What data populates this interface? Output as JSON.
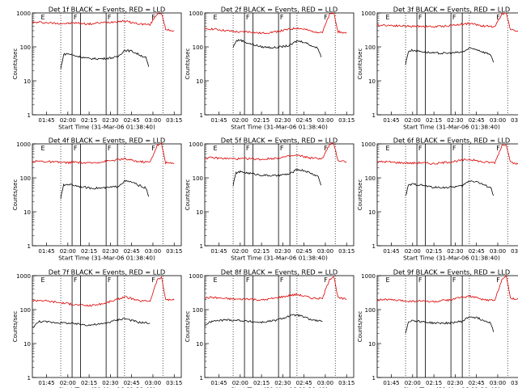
{
  "chart_data": [
    {
      "type": "line",
      "title": "Det 1f BLACK = Events, RED = LLD",
      "xlabel": "Start Time (31-Mar-06 01:38:40)",
      "ylabel": "Counts/sec",
      "yscale": "log",
      "ylim": [
        1,
        1000
      ],
      "xlim_min": [
        95,
        340
      ],
      "xticks_min": [
        105,
        120,
        135,
        150,
        165,
        180,
        195
      ],
      "xtick_labels": [
        "01:45",
        "02:00",
        "02:15",
        "02:30",
        "02:45",
        "03:00",
        "03:15"
      ],
      "yticks": [
        1,
        10,
        100,
        1000
      ],
      "ytick_labels": [
        "1",
        "10",
        "100",
        "1000"
      ],
      "dotted_lines_min": [
        115,
        160,
        187
      ],
      "solid_lines_min": [
        123,
        129,
        147,
        155
      ],
      "markers": [
        {
          "label": "E",
          "min": 101
        },
        {
          "label": "F",
          "min": 124
        },
        {
          "label": "F",
          "min": 148
        },
        {
          "label": "F",
          "min": 179
        }
      ],
      "series": [
        {
          "color": "#dd0000",
          "x": [
            95,
            100,
            110,
            120,
            125,
            135,
            145,
            155,
            160,
            165,
            170,
            178,
            183,
            186,
            189,
            195
          ],
          "y": [
            520,
            530,
            500,
            490,
            510,
            470,
            520,
            560,
            580,
            520,
            480,
            450,
            950,
            1000,
            320,
            300
          ]
        },
        {
          "color": "#000000",
          "x": [
            115,
            117,
            120,
            125,
            135,
            145,
            155,
            160,
            165,
            170,
            175,
            177
          ],
          "y": [
            22,
            60,
            63,
            55,
            45,
            45,
            50,
            80,
            75,
            60,
            48,
            26
          ]
        }
      ]
    },
    {
      "type": "line",
      "title": "Det 2f BLACK = Events, RED = LLD",
      "xlabel": "Start Time (31-Mar-06 01:38:40)",
      "ylabel": "Counts/sec",
      "yscale": "log",
      "ylim": [
        1,
        1000
      ],
      "xtick_labels": [
        "01:45",
        "02:00",
        "02:15",
        "02:30",
        "02:45",
        "03:00",
        "03:15"
      ],
      "yticks": [
        1,
        10,
        100,
        1000
      ],
      "ytick_labels": [
        "1",
        "10",
        "100",
        "1000"
      ],
      "markers": [
        {
          "label": "E",
          "min": 101
        },
        {
          "label": "F",
          "min": 124
        },
        {
          "label": "F",
          "min": 148
        },
        {
          "label": "F",
          "min": 179
        }
      ],
      "series": [
        {
          "color": "#dd0000",
          "x": [
            95,
            100,
            110,
            120,
            125,
            135,
            145,
            155,
            160,
            165,
            170,
            178,
            183,
            186,
            189,
            195
          ],
          "y": [
            330,
            340,
            300,
            270,
            280,
            250,
            280,
            330,
            360,
            330,
            290,
            270,
            900,
            1000,
            280,
            250
          ]
        },
        {
          "color": "#000000",
          "x": [
            115,
            117,
            120,
            125,
            135,
            145,
            155,
            160,
            165,
            170,
            175,
            177
          ],
          "y": [
            95,
            150,
            160,
            130,
            100,
            95,
            110,
            150,
            140,
            110,
            90,
            50
          ]
        }
      ]
    },
    {
      "type": "line",
      "title": "Det 3f BLACK = Events, RED = LLD",
      "xlabel": "Start Time (31-Mar-06 01:38:40)",
      "ylabel": "Counts/sec",
      "yscale": "log",
      "ylim": [
        1,
        1000
      ],
      "xtick_labels": [
        "01:45",
        "02:00",
        "02:15",
        "02:30",
        "02:45",
        "03:00",
        "03:15"
      ],
      "yticks": [
        1,
        10,
        100,
        1000
      ],
      "ytick_labels": [
        "1",
        "10",
        "100",
        "1000"
      ],
      "markers": [
        {
          "label": "E",
          "min": 101
        },
        {
          "label": "F",
          "min": 124
        },
        {
          "label": "F",
          "min": 148
        },
        {
          "label": "F",
          "min": 179
        }
      ],
      "series": [
        {
          "color": "#dd0000",
          "x": [
            95,
            100,
            110,
            120,
            125,
            135,
            145,
            155,
            160,
            165,
            170,
            178,
            183,
            186,
            189,
            195
          ],
          "y": [
            430,
            440,
            420,
            400,
            410,
            390,
            420,
            470,
            490,
            450,
            410,
            400,
            950,
            1000,
            320,
            300
          ]
        },
        {
          "color": "#000000",
          "x": [
            115,
            117,
            120,
            125,
            135,
            145,
            155,
            160,
            165,
            170,
            175,
            177
          ],
          "y": [
            30,
            75,
            80,
            75,
            65,
            65,
            70,
            90,
            85,
            70,
            60,
            35
          ]
        }
      ]
    },
    {
      "type": "line",
      "title": "Det 4f BLACK = Events, RED = LLD",
      "xlabel": "Start Time (31-Mar-06 01:38:40)",
      "ylabel": "Counts/sec",
      "yscale": "log",
      "ylim": [
        1,
        1000
      ],
      "xtick_labels": [
        "01:45",
        "02:00",
        "02:15",
        "02:30",
        "02:45",
        "03:00",
        "03:15"
      ],
      "yticks": [
        1,
        10,
        100,
        1000
      ],
      "ytick_labels": [
        "1",
        "10",
        "100",
        "1000"
      ],
      "markers": [
        {
          "label": "E",
          "min": 101
        },
        {
          "label": "F",
          "min": 124
        },
        {
          "label": "F",
          "min": 148
        },
        {
          "label": "F",
          "min": 179
        }
      ],
      "series": [
        {
          "color": "#dd0000",
          "x": [
            95,
            100,
            110,
            120,
            125,
            135,
            145,
            155,
            160,
            165,
            170,
            178,
            183,
            186,
            189,
            195
          ],
          "y": [
            300,
            310,
            290,
            280,
            290,
            270,
            300,
            340,
            360,
            330,
            300,
            290,
            900,
            1000,
            280,
            260
          ]
        },
        {
          "color": "#000000",
          "x": [
            115,
            117,
            120,
            125,
            135,
            145,
            155,
            160,
            165,
            170,
            175,
            177
          ],
          "y": [
            25,
            60,
            65,
            60,
            50,
            50,
            55,
            80,
            75,
            60,
            50,
            28
          ]
        }
      ]
    },
    {
      "type": "line",
      "title": "Det 5f BLACK = Events, RED = LLD",
      "xlabel": "Start Time (31-Mar-06 01:38:40)",
      "ylabel": "Counts/sec",
      "yscale": "log",
      "ylim": [
        1,
        1000
      ],
      "xtick_labels": [
        "01:45",
        "02:00",
        "02:15",
        "02:30",
        "02:45",
        "03:00",
        "03:15"
      ],
      "yticks": [
        1,
        10,
        100,
        1000
      ],
      "ytick_labels": [
        "1",
        "10",
        "100",
        "1000"
      ],
      "markers": [
        {
          "label": "E",
          "min": 101
        },
        {
          "label": "F",
          "min": 124
        },
        {
          "label": "F",
          "min": 148
        },
        {
          "label": "F",
          "min": 179
        }
      ],
      "series": [
        {
          "color": "#dd0000",
          "x": [
            95,
            100,
            110,
            120,
            125,
            135,
            145,
            155,
            160,
            165,
            170,
            178,
            183,
            186,
            189,
            195
          ],
          "y": [
            380,
            390,
            370,
            360,
            370,
            350,
            380,
            430,
            460,
            420,
            380,
            370,
            950,
            1000,
            320,
            300
          ]
        },
        {
          "color": "#000000",
          "x": [
            115,
            117,
            120,
            125,
            135,
            145,
            155,
            160,
            165,
            170,
            175,
            177
          ],
          "y": [
            60,
            140,
            150,
            140,
            120,
            115,
            130,
            175,
            165,
            135,
            110,
            60
          ]
        }
      ]
    },
    {
      "type": "line",
      "title": "Det 6f BLACK = Events, RED = LLD",
      "xlabel": "Start Time (31-Mar-06 01:38:40)",
      "ylabel": "Counts/sec",
      "yscale": "log",
      "ylim": [
        1,
        1000
      ],
      "xtick_labels": [
        "01:45",
        "02:00",
        "02:15",
        "02:30",
        "02:45",
        "03:00",
        "03:15"
      ],
      "yticks": [
        1,
        10,
        100,
        1000
      ],
      "ytick_labels": [
        "1",
        "10",
        "100",
        "1000"
      ],
      "markers": [
        {
          "label": "E",
          "min": 101
        },
        {
          "label": "F",
          "min": 124
        },
        {
          "label": "F",
          "min": 148
        },
        {
          "label": "F",
          "min": 179
        }
      ],
      "series": [
        {
          "color": "#dd0000",
          "x": [
            95,
            100,
            110,
            120,
            125,
            135,
            145,
            155,
            160,
            165,
            170,
            178,
            183,
            186,
            189,
            195
          ],
          "y": [
            290,
            300,
            280,
            270,
            280,
            260,
            290,
            330,
            350,
            320,
            290,
            280,
            900,
            1000,
            280,
            250
          ]
        },
        {
          "color": "#000000",
          "x": [
            115,
            117,
            120,
            125,
            135,
            145,
            155,
            160,
            165,
            170,
            175,
            177
          ],
          "y": [
            28,
            60,
            65,
            62,
            52,
            52,
            58,
            82,
            78,
            62,
            52,
            30
          ]
        }
      ]
    },
    {
      "type": "line",
      "title": "Det 7f BLACK = Events, RED = LLD",
      "xlabel": "Start Time (31-Mar-06 01:38:40)",
      "ylabel": "Counts/sec",
      "yscale": "log",
      "ylim": [
        1,
        1000
      ],
      "xtick_labels": [
        "01:45",
        "02:00",
        "02:15",
        "02:30",
        "02:45",
        "03:00",
        "03:15"
      ],
      "yticks": [
        1,
        10,
        100,
        1000
      ],
      "ytick_labels": [
        "1",
        "10",
        "100",
        "1000"
      ],
      "markers": [
        {
          "label": "E",
          "min": 101
        },
        {
          "label": "F",
          "min": 124
        },
        {
          "label": "F",
          "min": 148
        },
        {
          "label": "F",
          "min": 179
        }
      ],
      "series": [
        {
          "color": "#dd0000",
          "x": [
            95,
            100,
            110,
            120,
            125,
            135,
            145,
            155,
            160,
            165,
            170,
            178,
            183,
            186,
            189,
            195
          ],
          "y": [
            180,
            190,
            170,
            150,
            140,
            130,
            150,
            200,
            240,
            210,
            180,
            180,
            750,
            900,
            200,
            190
          ]
        },
        {
          "color": "#000000",
          "x": [
            95,
            100,
            110,
            120,
            125,
            135,
            145,
            155,
            160,
            165,
            170,
            178
          ],
          "y": [
            30,
            45,
            42,
            40,
            38,
            35,
            38,
            50,
            55,
            48,
            42,
            40
          ]
        }
      ]
    },
    {
      "type": "line",
      "title": "Det 8f BLACK = Events, RED = LLD",
      "xlabel": "Start Time (31-Mar-06 01:38:40)",
      "ylabel": "Counts/sec",
      "yscale": "log",
      "ylim": [
        1,
        1000
      ],
      "xtick_labels": [
        "01:45",
        "02:00",
        "02:15",
        "02:30",
        "02:45",
        "03:00",
        "03:15"
      ],
      "yticks": [
        1,
        10,
        100,
        1000
      ],
      "ytick_labels": [
        "1",
        "10",
        "100",
        "1000"
      ],
      "markers": [
        {
          "label": "E",
          "min": 101
        },
        {
          "label": "F",
          "min": 124
        },
        {
          "label": "F",
          "min": 148
        },
        {
          "label": "F",
          "min": 179
        }
      ],
      "series": [
        {
          "color": "#dd0000",
          "x": [
            95,
            100,
            110,
            120,
            125,
            135,
            145,
            155,
            160,
            165,
            170,
            178,
            183,
            186,
            189,
            195
          ],
          "y": [
            220,
            230,
            210,
            200,
            210,
            190,
            220,
            260,
            280,
            250,
            220,
            210,
            800,
            950,
            220,
            200
          ]
        },
        {
          "color": "#000000",
          "x": [
            95,
            100,
            110,
            120,
            125,
            135,
            145,
            155,
            160,
            165,
            170,
            178
          ],
          "y": [
            35,
            45,
            50,
            48,
            45,
            42,
            48,
            65,
            70,
            60,
            50,
            45
          ]
        }
      ]
    },
    {
      "type": "line",
      "title": "Det 9f BLACK = Events, RED = LLD",
      "xlabel": "Start Time (31-Mar-06 01:38:40)",
      "ylabel": "Counts/sec",
      "yscale": "log",
      "ylim": [
        1,
        1000
      ],
      "xtick_labels": [
        "01:45",
        "02:00",
        "02:15",
        "02:30",
        "02:45",
        "03:00",
        "03:15"
      ],
      "yticks": [
        1,
        10,
        100,
        1000
      ],
      "ytick_labels": [
        "1",
        "10",
        "100",
        "1000"
      ],
      "markers": [
        {
          "label": "E",
          "min": 101
        },
        {
          "label": "F",
          "min": 124
        },
        {
          "label": "F",
          "min": 148
        },
        {
          "label": "F",
          "min": 179
        }
      ],
      "series": [
        {
          "color": "#dd0000",
          "x": [
            95,
            100,
            110,
            120,
            125,
            135,
            145,
            155,
            160,
            165,
            170,
            178,
            183,
            186,
            189,
            195
          ],
          "y": [
            190,
            200,
            185,
            175,
            180,
            170,
            190,
            230,
            250,
            220,
            195,
            185,
            800,
            950,
            220,
            200
          ]
        },
        {
          "color": "#000000",
          "x": [
            115,
            117,
            120,
            125,
            135,
            145,
            155,
            160,
            165,
            170,
            175,
            177
          ],
          "y": [
            20,
            45,
            48,
            45,
            40,
            40,
            45,
            62,
            58,
            48,
            42,
            22
          ]
        }
      ]
    }
  ]
}
